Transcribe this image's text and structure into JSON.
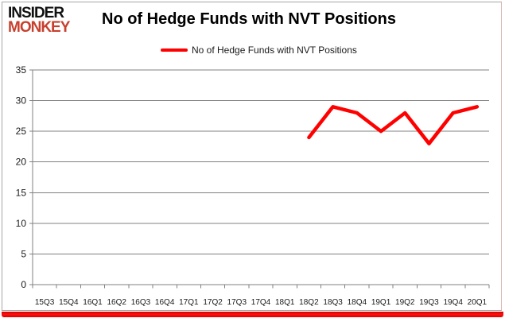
{
  "header": {
    "logo_line1": "INSIDER",
    "logo_line2": "MONKEY",
    "title": "No of Hedge Funds with NVT Positions"
  },
  "legend": {
    "label": "No of Hedge Funds with NVT Positions"
  },
  "colors": {
    "line": "#ff0000",
    "logo_red": "#c7402e",
    "grid": "#808080",
    "axis_text": "#1a1a1a",
    "bottom_bar_top": "#c90000",
    "bottom_bar_mid": "#ff1010",
    "bottom_bar_bottom": "#e00000"
  },
  "chart_data": {
    "type": "line",
    "title": "No of Hedge Funds with NVT Positions",
    "xlabel": "",
    "ylabel": "",
    "categories": [
      "15Q3",
      "15Q4",
      "16Q1",
      "16Q2",
      "16Q3",
      "16Q4",
      "17Q1",
      "17Q2",
      "17Q3",
      "17Q4",
      "18Q1",
      "18Q2",
      "18Q3",
      "18Q4",
      "19Q1",
      "19Q2",
      "19Q3",
      "19Q4",
      "20Q1"
    ],
    "series": [
      {
        "name": "No of Hedge Funds with NVT Positions",
        "color": "#ff0000",
        "values": [
          null,
          null,
          null,
          null,
          null,
          null,
          null,
          null,
          null,
          null,
          null,
          24,
          29,
          28,
          25,
          28,
          23,
          28,
          29
        ]
      }
    ],
    "ylim": [
      0,
      35
    ],
    "ytick_step": 5,
    "grid": true,
    "legend_position": "top-center"
  }
}
